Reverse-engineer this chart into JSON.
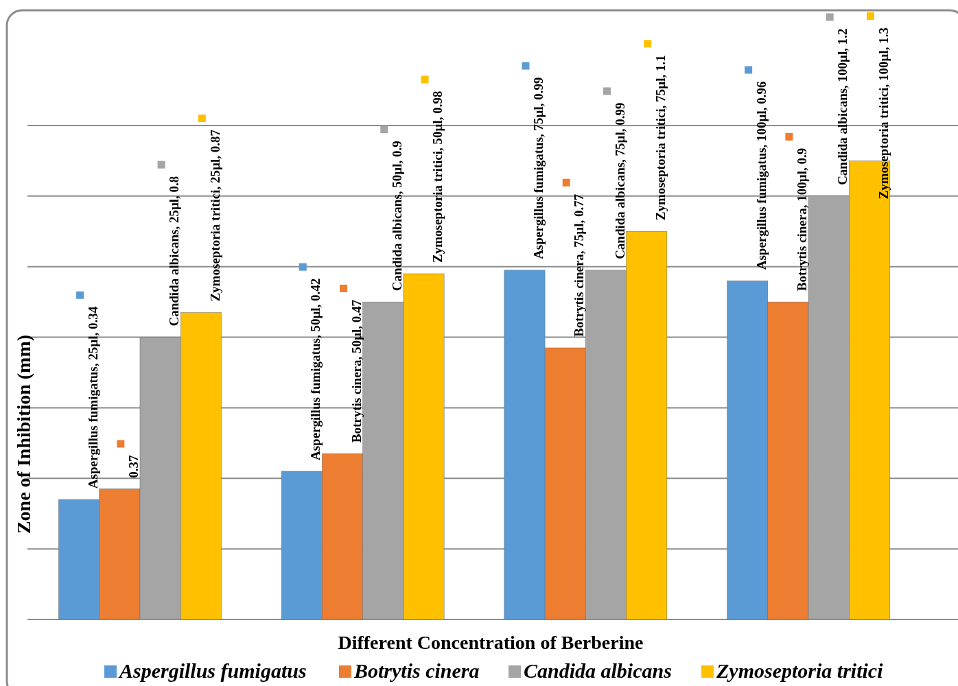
{
  "chart_data": {
    "type": "bar",
    "xlabel": "Different Concentration of Berberine",
    "ylabel": "Zone of Inhibition (mm)",
    "categories": [
      null,
      null,
      null,
      null
    ],
    "series": [
      {
        "name": "Aspergillus fumigatus",
        "color": "#5b9bd5",
        "values": [
          0.34,
          0.42,
          0.99,
          0.96
        ],
        "value_labels": [
          "Aspergillus fumigatus, 25µl, 0.34",
          "Aspergillus fumigatus, 50µl, 0.42",
          "Aspergillus fumigatus, 75µl, 0.99",
          "Aspergillus fumigatus, 100µl, 0.96"
        ]
      },
      {
        "name": "Botrytis cinera",
        "color": "#ed7d31",
        "values": [
          0.37,
          0.47,
          0.77,
          0.9
        ],
        "value_labels": [
          "0.37",
          "Botrytis cinera, 50µl, 0.47",
          "Botrytis cinera, 75µl, 0.77",
          "Botrytis cinera, 100µl, 0.9"
        ]
      },
      {
        "name": "Candida albicans",
        "color": "#a5a5a5",
        "values": [
          0.8,
          0.9,
          0.99,
          1.2
        ],
        "value_labels": [
          "Candida albicans, 25µl, 0.8",
          "Candida albicans, 50µl, 0.9",
          "Candida albicans, 75µl, 0.99",
          "Candida albicans, 100µl, 1.2"
        ]
      },
      {
        "name": "Zymoseptoria tritici",
        "color": "#ffc000",
        "values": [
          0.87,
          0.98,
          1.1,
          1.3
        ],
        "value_labels": [
          "Zymoseptoria tritici, 25µl, 0.87",
          "Zymoseptoria tritici, 50µl, 0.98",
          "Zymoseptoria tritici, 75µl, 1.1",
          "Zymoseptoria tritici, 100µl, 1.3"
        ]
      }
    ],
    "ylim": [
      0,
      1.4
    ],
    "yticks": [
      {
        "value": 0,
        "label": null
      },
      {
        "value": 0.2,
        "label": null
      },
      {
        "value": 0.4,
        "label": null
      },
      {
        "value": 0.6,
        "label": null
      },
      {
        "value": 0.8,
        "label": null
      },
      {
        "value": 1,
        "label": null
      },
      {
        "value": 1.2,
        "label": null
      },
      {
        "value": 1.4,
        "label": null
      }
    ],
    "grid": "y",
    "legend": "bottom",
    "tick_labels": false
  }
}
